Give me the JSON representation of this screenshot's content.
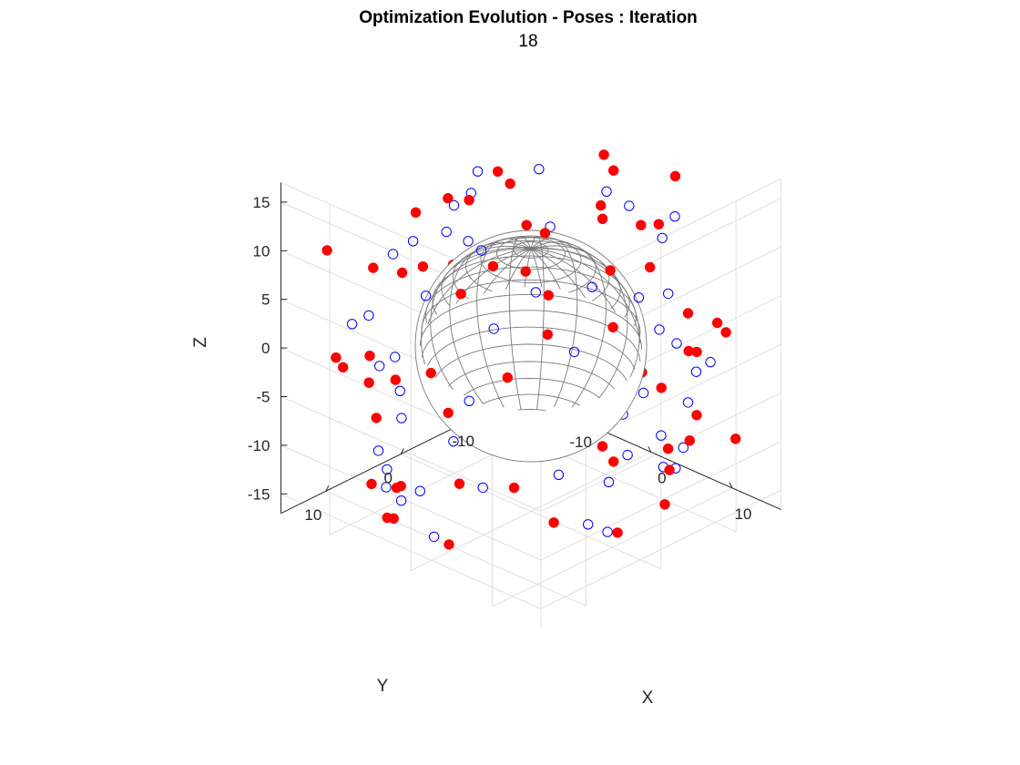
{
  "figure": {
    "title": "Optimization Evolution - Poses : Iteration",
    "subtitle": "18"
  },
  "colors": {
    "initial_marker": "#0000ff",
    "optimized_marker": "#ff0000",
    "sphere_wire": "#7a7a7a",
    "grid": "#e0e0e0",
    "axis": "#262626"
  },
  "chart_data": {
    "type": "scatter",
    "projection": "3d",
    "title": "Optimization Evolution - Poses : Iteration",
    "subtitle": "18",
    "xlabel": "X",
    "ylabel": "Y",
    "zlabel": "Z",
    "xlim": [
      -16,
      16
    ],
    "ylim": [
      -16,
      16
    ],
    "zlim": [
      -17,
      17
    ],
    "xticks": [
      -10,
      0,
      10
    ],
    "yticks": [
      -10,
      0,
      10
    ],
    "zticks": [
      -15,
      -10,
      -5,
      0,
      5,
      10,
      15
    ],
    "grid": true,
    "sphere": {
      "center": [
        0,
        0,
        0
      ],
      "radius": 10
    },
    "series": [
      {
        "marker": "open-circle",
        "color": "#0000ff",
        "points": [
          [
            1.7,
            10.2,
            15.3
          ],
          [
            -2.8,
            -4.1,
            15.6
          ],
          [
            -6.1,
            0.5,
            15.9
          ],
          [
            5.3,
            7.2,
            14.5
          ],
          [
            7.0,
            -5.5,
            14.9
          ],
          [
            3.2,
            8.8,
            13.1
          ],
          [
            -4.4,
            6.5,
            12.6
          ],
          [
            8.6,
            1.3,
            12.0
          ],
          [
            -9.3,
            -2.1,
            11.5
          ],
          [
            10.4,
            3.8,
            10.3
          ],
          [
            -1.6,
            -11.8,
            10.8
          ],
          [
            12.9,
            -0.4,
            9.6
          ],
          [
            6.1,
            -10.9,
            9.2
          ],
          [
            -10.7,
            6.8,
            8.1
          ],
          [
            -13.4,
            1.2,
            6.3
          ],
          [
            11.8,
            8.4,
            5.8
          ],
          [
            0.6,
            13.5,
            4.7
          ],
          [
            -7.8,
            -11.0,
            5.2
          ],
          [
            13.6,
            -4.7,
            3.5
          ],
          [
            -12.1,
            -6.5,
            2.9
          ],
          [
            4.7,
            -13.2,
            2.1
          ],
          [
            -5.1,
            12.6,
            1.8
          ],
          [
            14.2,
            3.1,
            -0.6
          ],
          [
            -14.6,
            -1.8,
            -0.9
          ],
          [
            8.9,
            11.2,
            -1.4
          ],
          [
            -9.2,
            -10.6,
            -1.9
          ],
          [
            2.6,
            -14.3,
            -2.8
          ],
          [
            -2.9,
            14.1,
            -3.1
          ],
          [
            12.5,
            -7.4,
            -4.0
          ],
          [
            -13.1,
            6.0,
            -4.6
          ],
          [
            10.8,
            8.0,
            -6.2
          ],
          [
            -11.6,
            -7.6,
            -5.4
          ],
          [
            5.9,
            12.8,
            -7.5
          ],
          [
            -6.4,
            -12.7,
            -7.8
          ],
          [
            13.9,
            -2.6,
            -8.3
          ],
          [
            -14.0,
            2.3,
            -8.9
          ],
          [
            1.2,
            -13.7,
            -9.6
          ],
          [
            -0.8,
            13.9,
            -9.9
          ],
          [
            9.7,
            -9.8,
            -10.6
          ],
          [
            -10.1,
            9.4,
            -10.9
          ],
          [
            12.2,
            5.6,
            -11.7
          ],
          [
            -12.4,
            -5.2,
            -12.2
          ],
          [
            4.1,
            -12.9,
            -12.6
          ],
          [
            -4.6,
            12.3,
            -12.9
          ],
          [
            8.2,
            -10.4,
            -13.5
          ],
          [
            -8.5,
            10.1,
            -13.8
          ],
          [
            11.0,
            1.7,
            -14.4
          ],
          [
            -11.3,
            -1.9,
            -14.7
          ],
          [
            0.9,
            -11.9,
            -15.4
          ],
          [
            -1.3,
            11.5,
            -15.7
          ],
          [
            14.8,
            -7.9,
            0.8
          ],
          [
            -14.9,
            7.7,
            -0.3
          ],
          [
            6.8,
            15.1,
            2.6
          ],
          [
            -6.6,
            -15.3,
            -2.2
          ],
          [
            15.4,
            6.3,
            -5.9
          ],
          [
            -15.2,
            -6.2,
            6.5
          ],
          [
            3.3,
            -15.6,
            8.6
          ],
          [
            -3.5,
            15.4,
            -8.1
          ],
          [
            7.6,
            -13.8,
            -5.1
          ],
          [
            -7.4,
            13.6,
            5.6
          ]
        ]
      },
      {
        "marker": "filled-circle",
        "color": "#ff0000",
        "points": [
          [
            0.3,
            -9.4,
            16.2
          ],
          [
            3.9,
            4.8,
            15.7
          ],
          [
            -3.4,
            -0.9,
            15.1
          ],
          [
            6.6,
            -2.4,
            14.6
          ],
          [
            -6.8,
            3.7,
            14.1
          ],
          [
            1.4,
            11.9,
            13.4
          ],
          [
            -1.1,
            -12.2,
            13.0
          ],
          [
            9.6,
            6.0,
            12.3
          ],
          [
            -9.9,
            -6.3,
            11.9
          ],
          [
            11.7,
            -3.2,
            11.2
          ],
          [
            -11.5,
            2.9,
            10.6
          ],
          [
            5.2,
            -11.4,
            10.1
          ],
          [
            -5.6,
            11.1,
            9.7
          ],
          [
            12.8,
            5.1,
            8.8
          ],
          [
            -12.6,
            -5.4,
            8.3
          ],
          [
            0.7,
            -13.9,
            7.4
          ],
          [
            -0.4,
            13.8,
            6.9
          ],
          [
            13.7,
            -6.1,
            6.1
          ],
          [
            -13.5,
            6.4,
            5.5
          ],
          [
            8.4,
            11.6,
            4.6
          ],
          [
            -8.7,
            -11.3,
            4.1
          ],
          [
            14.5,
            0.9,
            3.0
          ],
          [
            -14.4,
            -1.2,
            2.4
          ],
          [
            3.6,
            14.6,
            1.3
          ],
          [
            -3.9,
            -14.8,
            0.7
          ],
          [
            10.9,
            -10.3,
            -0.5
          ],
          [
            -10.6,
            10.0,
            -1.1
          ],
          [
            14.9,
            6.6,
            -2.3
          ],
          [
            -15.0,
            -6.9,
            -2.8
          ],
          [
            6.3,
            -14.2,
            -3.6
          ],
          [
            -6.1,
            14.0,
            -4.3
          ],
          [
            13.2,
            -7.8,
            -5.2
          ],
          [
            -13.0,
            7.5,
            -5.7
          ],
          [
            9.1,
            12.1,
            -6.6
          ],
          [
            -9.4,
            -12.4,
            -7.0
          ],
          [
            15.2,
            -2.0,
            -7.9
          ],
          [
            -15.1,
            1.7,
            -8.4
          ],
          [
            2.2,
            -15.0,
            -9.2
          ],
          [
            -2.5,
            15.2,
            -9.7
          ],
          [
            11.4,
            9.3,
            -10.4
          ],
          [
            -11.2,
            -9.0,
            -10.8
          ],
          [
            7.9,
            -12.6,
            -11.6
          ],
          [
            -7.7,
            12.9,
            -12.1
          ],
          [
            13.8,
            3.4,
            -12.8
          ],
          [
            -13.6,
            -3.7,
            -13.3
          ],
          [
            4.5,
            -13.4,
            -14.0
          ],
          [
            -4.8,
            13.1,
            -14.5
          ],
          [
            10.2,
            -6.8,
            -15.1
          ],
          [
            -10.0,
            6.5,
            -15.6
          ],
          [
            0.1,
            -10.9,
            -16.0
          ],
          [
            -0.2,
            10.7,
            -16.4
          ],
          [
            12.4,
            12.7,
            1.9
          ],
          [
            -12.2,
            -12.5,
            -1.6
          ],
          [
            15.6,
            -9.1,
            3.7
          ],
          [
            -15.5,
            9.2,
            -3.4
          ],
          [
            5.8,
            15.8,
            -6.0
          ],
          [
            -5.9,
            -15.7,
            6.3
          ],
          [
            15.9,
            4.2,
            10.5
          ],
          [
            -16.0,
            -4.0,
            -10.2
          ],
          [
            2.9,
            -16.1,
            12.4
          ],
          [
            -3.0,
            15.9,
            -12.7
          ],
          [
            8.8,
            -15.3,
            -0.2
          ],
          [
            -8.9,
            15.4,
            0.4
          ],
          [
            14.1,
            -12.0,
            -8.9
          ],
          [
            -14.2,
            11.8,
            9.1
          ],
          [
            1.9,
            4.3,
            -2.5
          ],
          [
            -2.1,
            -4.6,
            2.7
          ],
          [
            6.9,
            2.0,
            -4.8
          ],
          [
            -6.7,
            -2.2,
            4.9
          ],
          [
            4.0,
            -6.6,
            0.9
          ]
        ]
      }
    ]
  }
}
